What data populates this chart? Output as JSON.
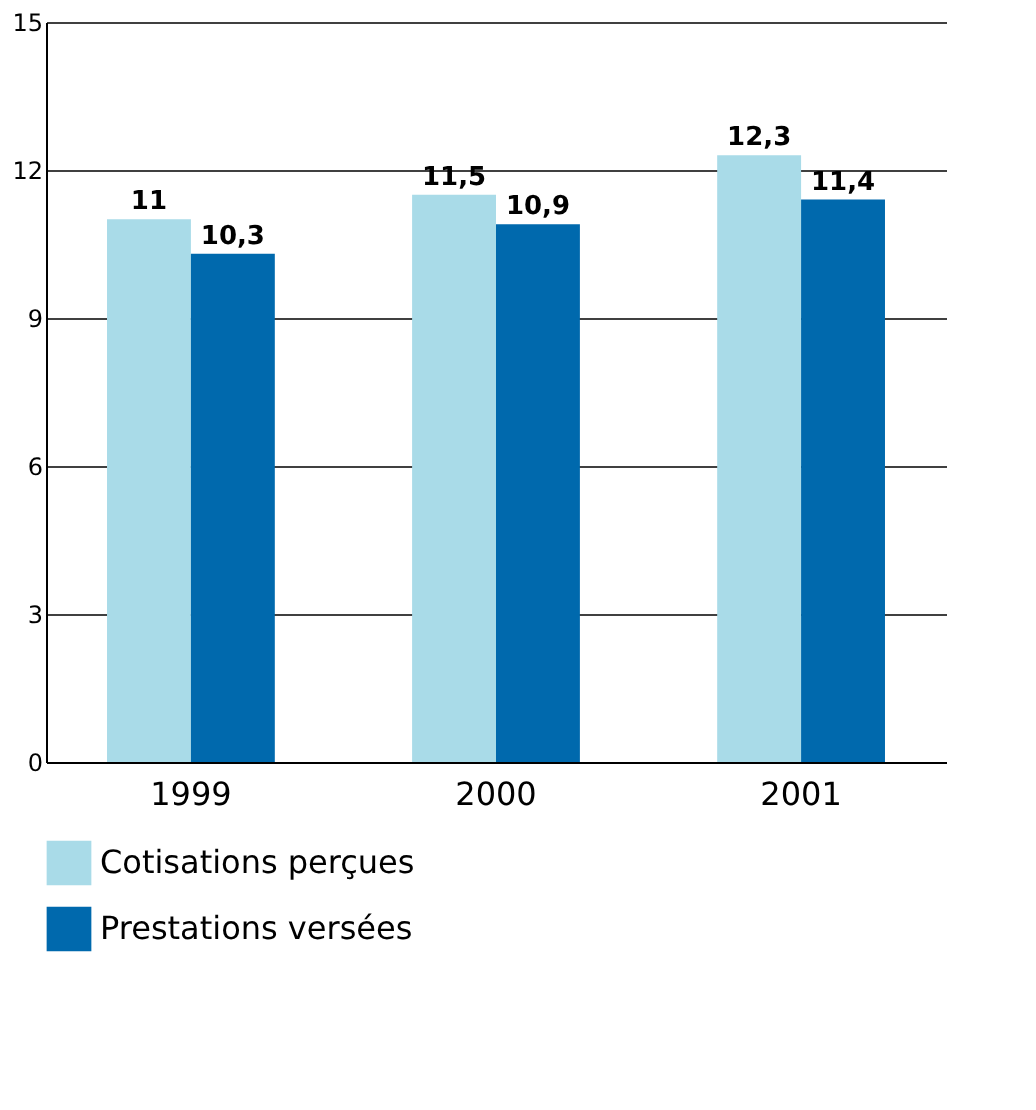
{
  "chart_data": {
    "type": "bar",
    "categories": [
      "1999",
      "2000",
      "2001"
    ],
    "series": [
      {
        "name": "Cotisations perçues",
        "color": "#a9dbe8",
        "values": [
          11,
          11.5,
          12.3
        ],
        "value_labels": [
          "11",
          "11,5",
          "12,3"
        ]
      },
      {
        "name": "Prestations versées",
        "color": "#0069ad",
        "values": [
          10.3,
          10.9,
          11.4
        ],
        "value_labels": [
          "10,3",
          "10,9",
          "11,4"
        ]
      }
    ],
    "ylim": [
      0,
      15
    ],
    "yticks": [
      0,
      3,
      6,
      9,
      12,
      15
    ],
    "grid": "y",
    "legend": "bottom left"
  }
}
